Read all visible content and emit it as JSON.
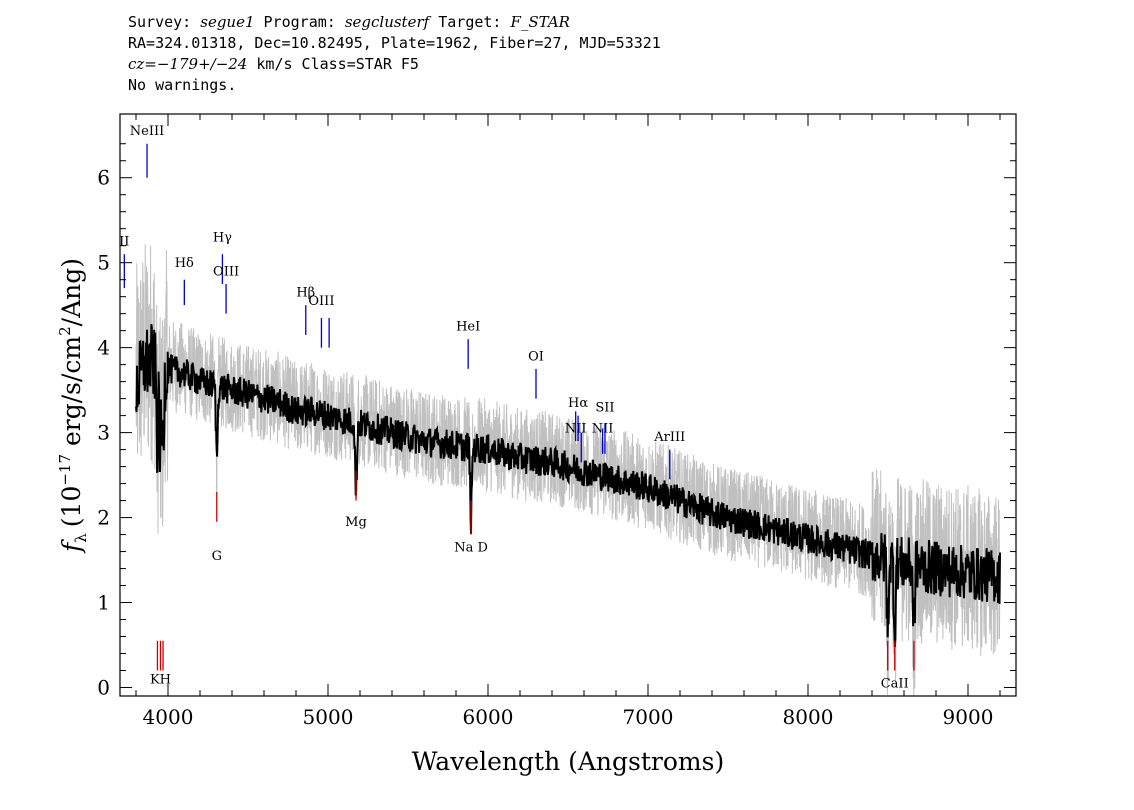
{
  "header": {
    "line1": {
      "survey_label": "Survey: ",
      "survey": "segue1",
      "program_label": " Program: ",
      "program": "segclusterf",
      "target_label": " Target: ",
      "target": "F_STAR"
    },
    "line2": "RA=324.01318, Dec=10.82495, Plate=1962, Fiber=27, MJD=53321",
    "line3": {
      "cz_label": "cz=",
      "cz": "−179+/−24",
      "rest": " km/s Class=STAR F5"
    },
    "line4": "No warnings."
  },
  "chart_data": {
    "type": "line",
    "xlabel": "Wavelength (Angstroms)",
    "ylabel_main": "(10",
    "ylabel_exp": "−17",
    "ylabel_mid": " erg/s/cm",
    "ylabel_exp2": "2",
    "ylabel_tail": "/Ang)",
    "ylabel_symbol": "f",
    "ylabel_symbol_sub": "λ",
    "xlim": [
      3700,
      9300
    ],
    "ylim": [
      -0.1,
      6.75
    ],
    "x_ticks": [
      4000,
      5000,
      6000,
      7000,
      8000,
      9000
    ],
    "x_tick_labels": [
      "4000",
      "5000",
      "6000",
      "7000",
      "8000",
      "9000"
    ],
    "y_ticks": [
      0,
      1,
      2,
      3,
      4,
      5,
      6
    ],
    "y_tick_labels": [
      "0",
      "1",
      "2",
      "3",
      "4",
      "5",
      "6"
    ],
    "series": [
      {
        "role": "flux-noise",
        "color": "#c0c0c0",
        "x": [
          3800,
          3850,
          3900,
          3950,
          4000,
          4100,
          4200,
          4300,
          4400,
          4500,
          4600,
          4700,
          4800,
          4900,
          5000,
          5200,
          5400,
          5600,
          5800,
          6000,
          6200,
          6400,
          6600,
          6800,
          7000,
          7200,
          7400,
          7600,
          7800,
          8000,
          8200,
          8400,
          8600,
          8800,
          9000,
          9200
        ],
        "y": [
          3.6,
          3.9,
          4.0,
          3.7,
          3.8,
          3.75,
          3.65,
          3.6,
          3.55,
          3.5,
          3.45,
          3.4,
          3.3,
          3.3,
          3.25,
          3.15,
          3.05,
          2.95,
          2.9,
          2.85,
          2.75,
          2.7,
          2.6,
          2.5,
          2.4,
          2.25,
          2.1,
          2.0,
          1.9,
          1.8,
          1.7,
          1.6,
          1.5,
          1.45,
          1.4,
          1.3
        ]
      },
      {
        "role": "flux",
        "color": "#000000",
        "x": [
          3800,
          3850,
          3900,
          3950,
          4000,
          4100,
          4200,
          4300,
          4400,
          4500,
          4600,
          4700,
          4800,
          4900,
          5000,
          5200,
          5400,
          5600,
          5800,
          6000,
          6200,
          6400,
          6600,
          6800,
          7000,
          7200,
          7400,
          7600,
          7800,
          8000,
          8200,
          8400,
          8600,
          8800,
          9000,
          9200
        ],
        "y": [
          3.5,
          3.8,
          3.85,
          3.6,
          3.75,
          3.7,
          3.6,
          3.55,
          3.5,
          3.45,
          3.4,
          3.35,
          3.25,
          3.25,
          3.2,
          3.1,
          3.0,
          2.9,
          2.85,
          2.8,
          2.7,
          2.65,
          2.55,
          2.45,
          2.35,
          2.2,
          2.05,
          1.95,
          1.85,
          1.75,
          1.65,
          1.55,
          1.45,
          1.4,
          1.35,
          1.3
        ]
      }
    ],
    "emission_lines": [
      {
        "label": "NeIII",
        "x": 3869,
        "y0": 6.0,
        "y1": 6.4,
        "ly": 6.5,
        "color": "#0000cc"
      },
      {
        "label": "II",
        "x": 3727,
        "y0": 4.7,
        "y1": 5.1,
        "ly": 5.2,
        "color": "#0000cc"
      },
      {
        "label": "Hδ",
        "x": 4102,
        "y0": 4.5,
        "y1": 4.8,
        "ly": 4.95,
        "color": "#0000cc"
      },
      {
        "label": "Hγ",
        "x": 4340,
        "y0": 4.75,
        "y1": 5.1,
        "ly": 5.25,
        "color": "#0000cc"
      },
      {
        "label": "OIII",
        "x": 4363,
        "y0": 4.4,
        "y1": 4.75,
        "ly": 4.85,
        "color": "#0000cc"
      },
      {
        "label": "Hβ",
        "x": 4861,
        "y0": 4.15,
        "y1": 4.5,
        "ly": 4.6,
        "color": "#0000cc"
      },
      {
        "label": "OIII",
        "x": 4959,
        "y0": 4.0,
        "y1": 4.35,
        "ly": 4.5,
        "color": "#0000cc"
      },
      {
        "label": "",
        "x": 5007,
        "y0": 4.0,
        "y1": 4.35,
        "ly": 4.5,
        "color": "#0000cc"
      },
      {
        "label": "HeI",
        "x": 5876,
        "y0": 3.75,
        "y1": 4.1,
        "ly": 4.2,
        "color": "#0000cc"
      },
      {
        "label": "OI",
        "x": 6300,
        "y0": 3.4,
        "y1": 3.75,
        "ly": 3.85,
        "color": "#0000cc"
      },
      {
        "label": "NII",
        "x": 6548,
        "y0": 2.9,
        "y1": 3.25,
        "ly": 3.0,
        "color": "#0000cc"
      },
      {
        "label": "Hα",
        "x": 6563,
        "y0": 2.9,
        "y1": 3.2,
        "ly": 3.3,
        "color": "#0000cc"
      },
      {
        "label": "",
        "x": 6583,
        "y0": 2.65,
        "y1": 3.0,
        "ly": 3.0,
        "color": "#0000cc"
      },
      {
        "label": "NII",
        "x": 6716,
        "y0": 2.75,
        "y1": 3.05,
        "ly": 3.0,
        "color": "#0000cc"
      },
      {
        "label": "SII",
        "x": 6731,
        "y0": 2.75,
        "y1": 3.1,
        "ly": 3.25,
        "color": "#0000cc"
      },
      {
        "label": "ArIII",
        "x": 7136,
        "y0": 2.45,
        "y1": 2.8,
        "ly": 2.9,
        "color": "#0000cc"
      }
    ],
    "absorption_lines": [
      {
        "label": "G",
        "x": 4305,
        "y0": 1.95,
        "y1": 2.3,
        "ly": 1.5,
        "color": "#cc0000"
      },
      {
        "label": "Mg",
        "x": 5175,
        "y0": 2.2,
        "y1": 2.55,
        "ly": 1.9,
        "color": "#cc0000"
      },
      {
        "label": "Na D",
        "x": 5894,
        "y0": 1.8,
        "y1": 2.2,
        "ly": 1.6,
        "color": "#cc0000"
      },
      {
        "label": "KH",
        "x": 3953,
        "y0": 0.2,
        "y1": 0.55,
        "ly": 0.05,
        "color": "#cc0000"
      },
      {
        "label": "",
        "x": 3934,
        "y0": 0.2,
        "y1": 0.55,
        "ly": 0.05,
        "color": "#cc0000"
      },
      {
        "label": "",
        "x": 3969,
        "y0": 0.2,
        "y1": 0.55,
        "ly": 0.05,
        "color": "#cc0000"
      },
      {
        "label": "CaII",
        "x": 8542,
        "y0": 0.2,
        "y1": 0.55,
        "ly": 0.0,
        "color": "#cc0000"
      },
      {
        "label": "",
        "x": 8498,
        "y0": 0.2,
        "y1": 0.55,
        "ly": 0.0,
        "color": "#cc0000"
      },
      {
        "label": "",
        "x": 8662,
        "y0": 0.2,
        "y1": 0.55,
        "ly": 0.0,
        "color": "#cc0000"
      }
    ],
    "grid": false
  }
}
